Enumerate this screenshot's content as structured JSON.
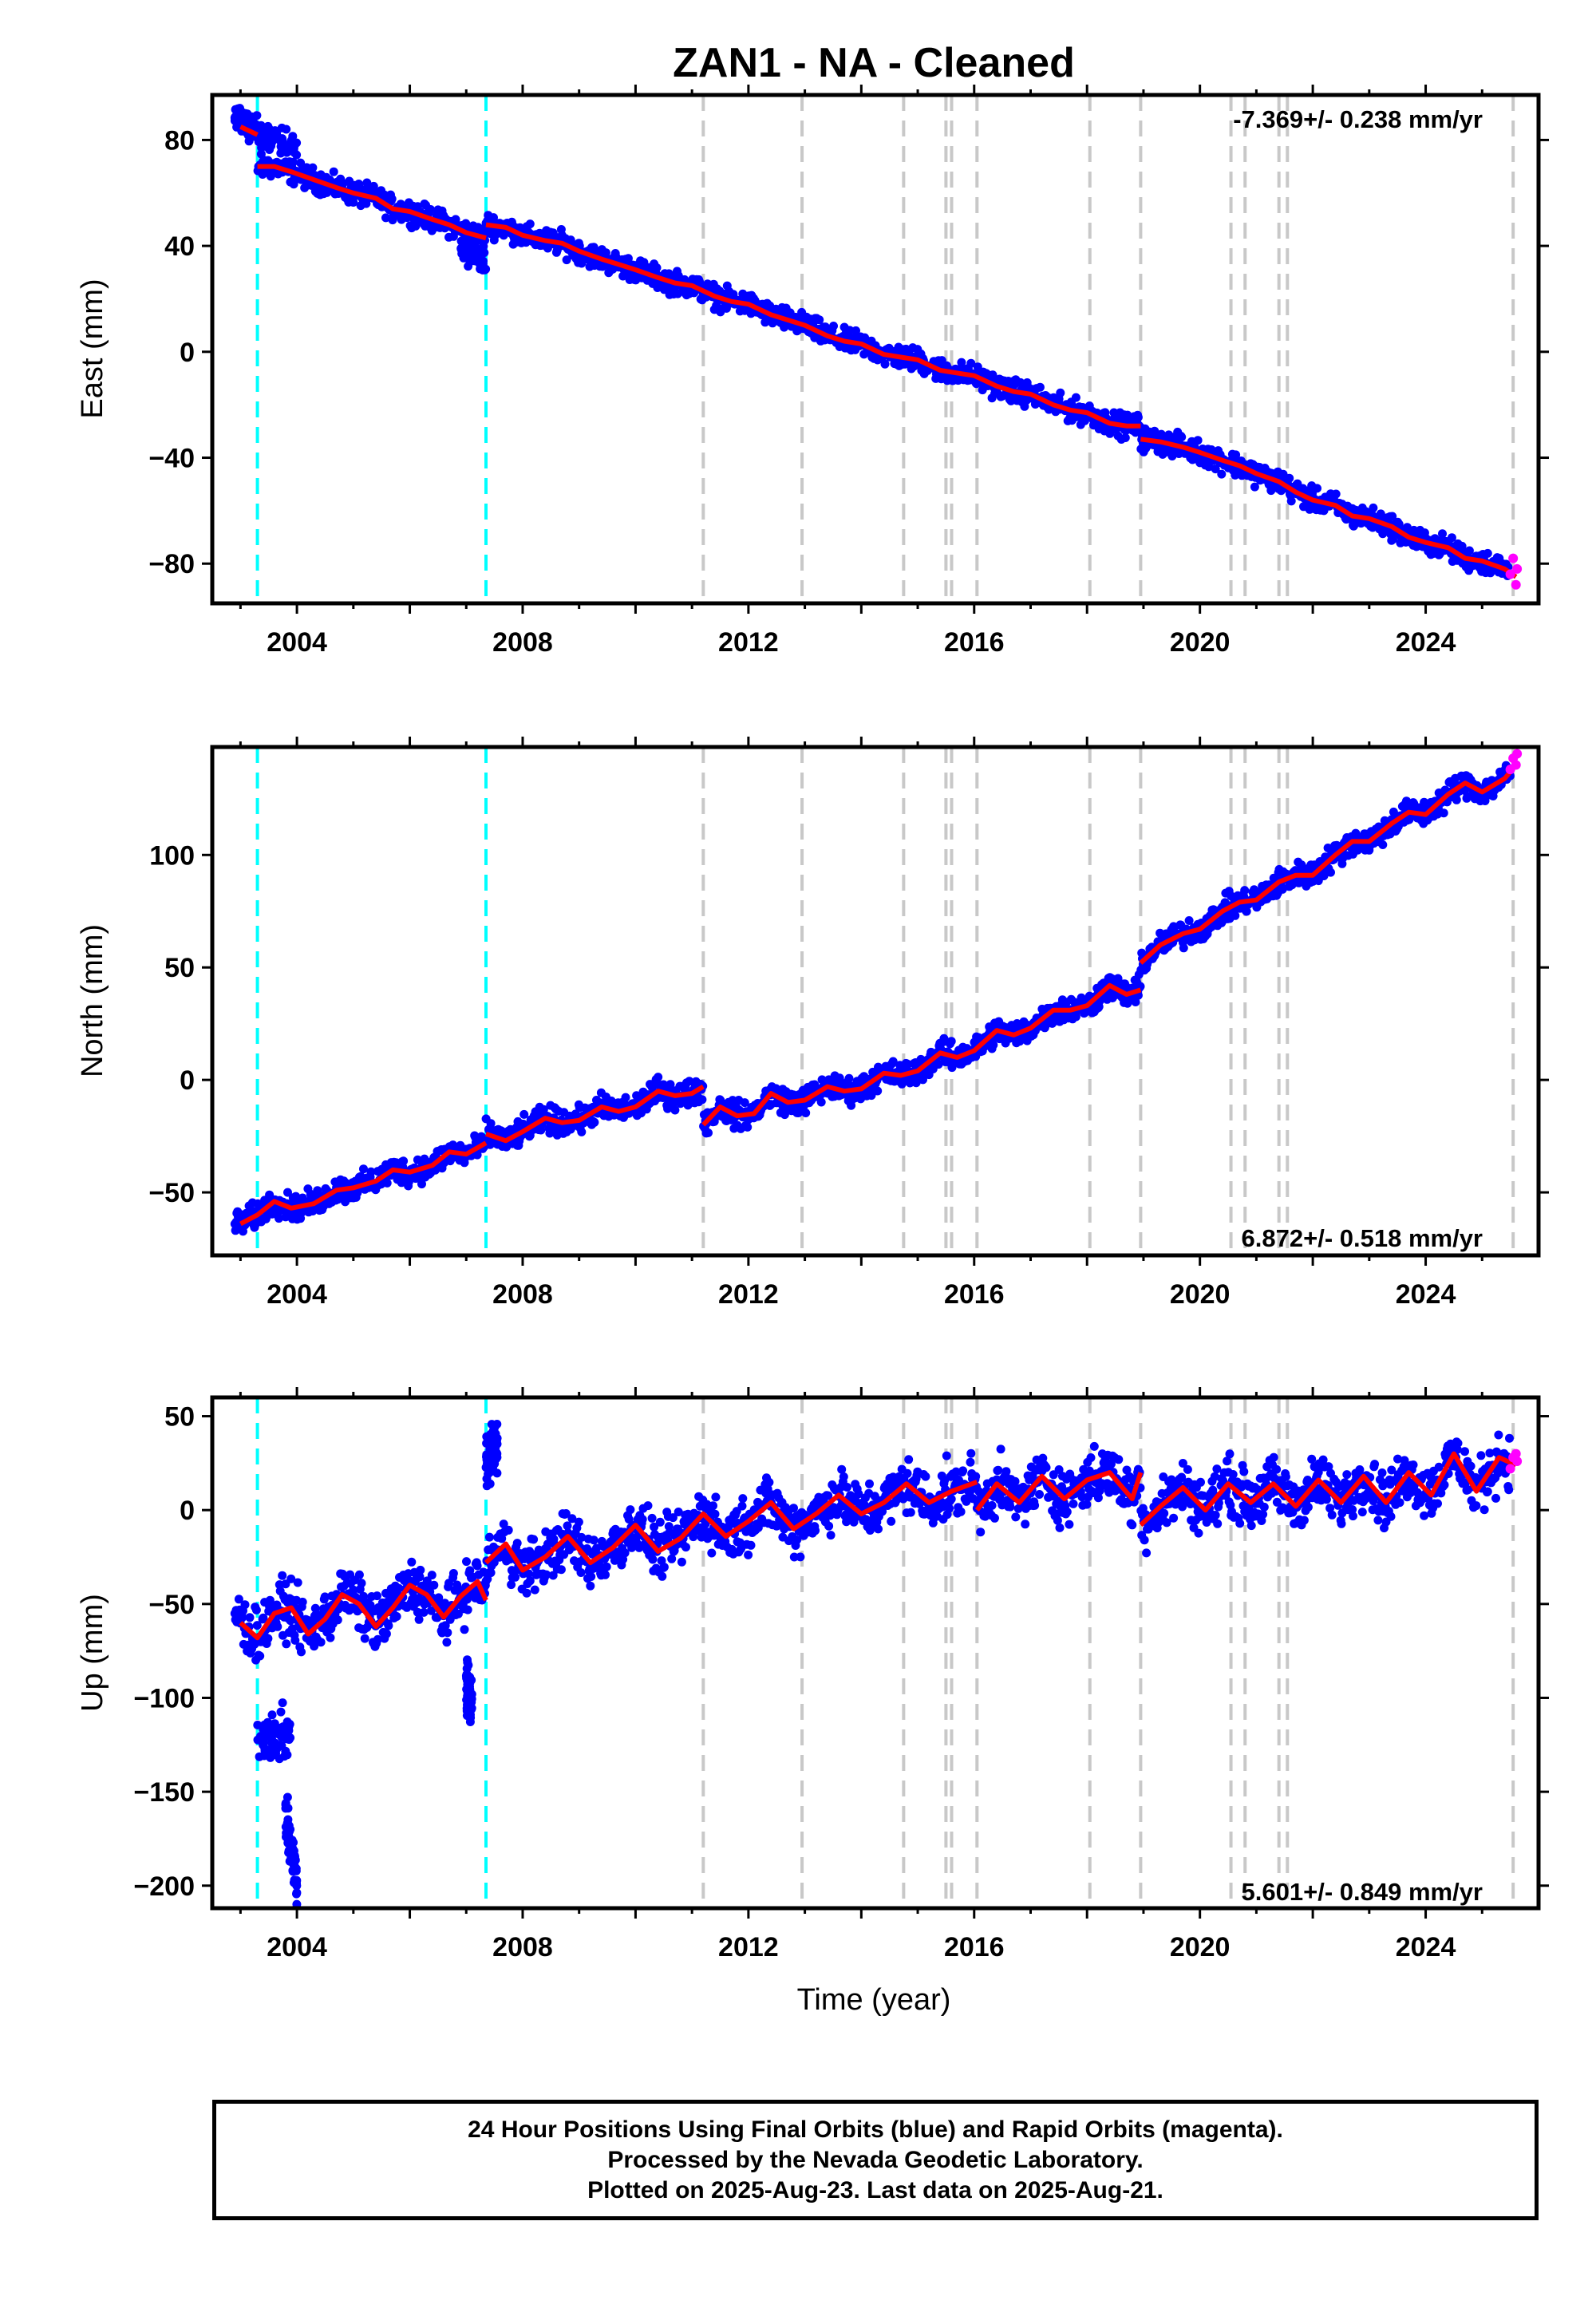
{
  "title": "ZAN1  - NA - Cleaned",
  "colors": {
    "final_orbits": "#0000ff",
    "rapid_orbits": "#ff00ff",
    "model": "#ff0000",
    "equipment_change": "#00ffff",
    "event": "#c8c8c8"
  },
  "xlabel": "Time (year)",
  "caption": [
    "24 Hour Positions Using Final Orbits (blue) and Rapid Orbits (magenta).",
    "Processed by the Nevada Geodetic Laboratory.",
    "Plotted on 2025-Aug-23. Last data on 2025-Aug-21."
  ],
  "chart_data": [
    {
      "type": "scatter",
      "component": "East",
      "ylabel": "East (mm)",
      "rate_label": "-7.369+/- 0.238 mm/yr",
      "xlim": [
        2002.5,
        2026.0
      ],
      "ylim": [
        -95,
        97
      ],
      "xticks": [
        2004,
        2008,
        2012,
        2016,
        2020,
        2024
      ],
      "yticks": [
        -80,
        -40,
        0,
        40,
        80
      ],
      "cyan_lines": [
        2003.3,
        2007.35
      ],
      "gray_lines": [
        2011.2,
        2012.95,
        2014.75,
        2015.5,
        2015.6,
        2016.05,
        2018.05,
        2018.95,
        2020.55,
        2020.8,
        2021.4,
        2021.55,
        2025.55
      ],
      "model_segments": [
        {
          "x": [
            2003.0,
            2003.3
          ],
          "y": [
            85,
            82
          ]
        },
        {
          "x": [
            2003.3,
            2003.6,
            2003.9,
            2004.3,
            2004.7,
            2005.0,
            2005.4,
            2005.7,
            2006.0,
            2006.4,
            2006.7,
            2007.0,
            2007.35
          ],
          "y": [
            70,
            70,
            68,
            65,
            62,
            60,
            58,
            54,
            53,
            50,
            48,
            45,
            43
          ]
        },
        {
          "x": [
            2007.35,
            2007.7,
            2008.0,
            2008.4,
            2008.7,
            2009.0,
            2009.4,
            2009.7,
            2010.0,
            2010.4,
            2010.7,
            2011.0,
            2011.4,
            2011.7,
            2012.0,
            2012.4,
            2012.7,
            2013.0,
            2013.4,
            2013.7,
            2014.0,
            2014.4,
            2014.7,
            2015.0,
            2015.4,
            2015.7,
            2016.0,
            2016.4,
            2016.7,
            2017.0,
            2017.4,
            2017.7,
            2018.0,
            2018.4,
            2018.7,
            2018.95
          ],
          "y": [
            48,
            47,
            44,
            42,
            41,
            38,
            35,
            33,
            31,
            28,
            26,
            25,
            21,
            19,
            18,
            14,
            12,
            10,
            6,
            4,
            3,
            -1,
            -2,
            -3,
            -7,
            -8,
            -9,
            -13,
            -15,
            -16,
            -20,
            -22,
            -23,
            -27,
            -28,
            -28
          ]
        },
        {
          "x": [
            2018.95,
            2019.3,
            2019.7,
            2020.0,
            2020.4,
            2020.7,
            2021.0,
            2021.4,
            2021.7,
            2022.0,
            2022.4,
            2022.7,
            2023.0,
            2023.4,
            2023.7,
            2024.0,
            2024.4,
            2024.7,
            2025.0,
            2025.4,
            2025.6
          ],
          "y": [
            -33,
            -34,
            -36,
            -38,
            -41,
            -43,
            -46,
            -49,
            -53,
            -56,
            -58,
            -62,
            -63,
            -66,
            -70,
            -72,
            -74,
            -78,
            -79,
            -82,
            -85
          ]
        }
      ],
      "points_trend": {
        "x0": 2002.9,
        "x1": 2025.5,
        "y0": 88,
        "y1": -86,
        "scatter": 3.0
      },
      "points_segments": [
        {
          "x": [
            2002.9,
            2003.3
          ],
          "y": [
            90,
            84
          ]
        },
        {
          "x": [
            2003.3,
            2004.0
          ],
          "y": [
            82,
            78
          ]
        },
        {
          "x": [
            2006.9,
            2007.35
          ],
          "y": [
            38,
            34
          ]
        }
      ],
      "rapid_points": {
        "x": [
          2025.5,
          2025.55,
          2025.6,
          2025.62
        ],
        "y": [
          -84,
          -78,
          -88,
          -82
        ]
      }
    },
    {
      "type": "scatter",
      "component": "North",
      "ylabel": "North (mm)",
      "rate_label": "6.872+/- 0.518 mm/yr",
      "xlim": [
        2002.5,
        2026.0
      ],
      "ylim": [
        -78,
        148
      ],
      "xticks": [
        2004,
        2008,
        2012,
        2016,
        2020,
        2024
      ],
      "yticks": [
        -50,
        0,
        50,
        100
      ],
      "cyan_lines": [
        2003.3,
        2007.35
      ],
      "gray_lines": [
        2011.2,
        2012.95,
        2014.75,
        2015.5,
        2015.6,
        2016.05,
        2018.05,
        2018.95,
        2020.55,
        2020.8,
        2021.4,
        2021.55,
        2025.55
      ],
      "model_segments": [
        {
          "x": [
            2003.0,
            2003.3,
            2003.6,
            2003.9,
            2004.3,
            2004.7,
            2005.0,
            2005.4,
            2005.7,
            2006.0,
            2006.4,
            2006.7,
            2007.0,
            2007.35
          ],
          "y": [
            -64,
            -60,
            -54,
            -57,
            -55,
            -49,
            -48,
            -45,
            -40,
            -41,
            -38,
            -32,
            -33,
            -28
          ]
        },
        {
          "x": [
            2007.35,
            2007.7,
            2008.0,
            2008.4,
            2008.7,
            2009.0,
            2009.4,
            2009.7,
            2010.0,
            2010.4,
            2010.7,
            2011.0,
            2011.2
          ],
          "y": [
            -24,
            -27,
            -23,
            -17,
            -19,
            -18,
            -12,
            -14,
            -12,
            -5,
            -7,
            -6,
            -3
          ]
        },
        {
          "x": [
            2011.2,
            2011.5,
            2011.8,
            2012.1,
            2012.4,
            2012.7,
            2013.0,
            2013.4,
            2013.7,
            2014.0,
            2014.4,
            2014.7,
            2015.0,
            2015.4,
            2015.7,
            2016.0,
            2016.4,
            2016.7,
            2017.0,
            2017.4,
            2017.7,
            2018.0,
            2018.4,
            2018.7,
            2018.95
          ],
          "y": [
            -20,
            -12,
            -16,
            -15,
            -6,
            -10,
            -9,
            -3,
            -5,
            -4,
            3,
            2,
            4,
            12,
            10,
            13,
            22,
            20,
            23,
            31,
            31,
            33,
            42,
            38,
            40
          ]
        },
        {
          "x": [
            2018.95,
            2019.3,
            2019.7,
            2020.0,
            2020.4,
            2020.7,
            2021.0,
            2021.4,
            2021.7,
            2022.0,
            2022.4,
            2022.7,
            2023.0,
            2023.4,
            2023.7,
            2024.0,
            2024.4,
            2024.7,
            2025.0,
            2025.4,
            2025.6
          ],
          "y": [
            52,
            60,
            65,
            67,
            75,
            79,
            80,
            88,
            91,
            91,
            100,
            106,
            106,
            114,
            119,
            118,
            127,
            132,
            128,
            134,
            140
          ]
        }
      ],
      "points_trend": {
        "x0": 2002.9,
        "x1": 2025.5,
        "y0": -64,
        "y1": 138,
        "scatter": 4.0
      },
      "points_segments": [],
      "rapid_points": {
        "x": [
          2025.5,
          2025.55,
          2025.6,
          2025.62
        ],
        "y": [
          138,
          143,
          140,
          145
        ]
      }
    },
    {
      "type": "scatter",
      "component": "Up",
      "ylabel": "Up (mm)",
      "rate_label": "5.601+/- 0.849 mm/yr",
      "xlim": [
        2002.5,
        2026.0
      ],
      "ylim": [
        -212,
        60
      ],
      "xticks": [
        2004,
        2008,
        2012,
        2016,
        2020,
        2024
      ],
      "yticks": [
        -200,
        -150,
        -100,
        -50,
        0,
        50
      ],
      "cyan_lines": [
        2003.3,
        2007.35
      ],
      "gray_lines": [
        2011.2,
        2012.95,
        2014.75,
        2015.5,
        2015.6,
        2016.05,
        2018.05,
        2018.95,
        2020.55,
        2020.8,
        2021.4,
        2021.55,
        2025.55
      ],
      "model_segments": [
        {
          "x": [
            2003.0,
            2003.3,
            2003.6,
            2003.9,
            2004.2,
            2004.5,
            2004.8,
            2005.1,
            2005.4,
            2005.7,
            2006.0,
            2006.3,
            2006.6,
            2006.9,
            2007.2,
            2007.35
          ],
          "y": [
            -60,
            -68,
            -55,
            -52,
            -66,
            -58,
            -45,
            -50,
            -62,
            -52,
            -40,
            -45,
            -57,
            -46,
            -38,
            -48
          ]
        },
        {
          "x": [
            2007.35,
            2007.7,
            2008.0,
            2008.4,
            2008.8,
            2009.2,
            2009.6,
            2010.0,
            2010.4,
            2010.8,
            2011.2,
            2011.6,
            2012.0,
            2012.4,
            2012.8,
            2013.2,
            2013.6,
            2014.0,
            2014.4,
            2014.8,
            2015.2,
            2015.6,
            2016.05
          ],
          "y": [
            -28,
            -18,
            -32,
            -25,
            -14,
            -28,
            -20,
            -8,
            -22,
            -15,
            -2,
            -14,
            -6,
            4,
            -10,
            -2,
            8,
            -2,
            4,
            14,
            4,
            10,
            15
          ]
        },
        {
          "x": [
            2016.05,
            2016.4,
            2016.8,
            2017.2,
            2017.6,
            2018.0,
            2018.4,
            2018.8,
            2018.95
          ],
          "y": [
            0,
            14,
            4,
            18,
            6,
            16,
            20,
            6,
            20
          ]
        },
        {
          "x": [
            2018.95,
            2019.3,
            2019.7,
            2020.1,
            2020.5,
            2020.9,
            2021.3,
            2021.7,
            2022.1,
            2022.5,
            2022.9,
            2023.3,
            2023.7,
            2024.1,
            2024.5,
            2024.9,
            2025.3,
            2025.6
          ],
          "y": [
            -8,
            2,
            12,
            0,
            14,
            4,
            14,
            2,
            16,
            4,
            18,
            4,
            20,
            8,
            30,
            10,
            28,
            24
          ]
        }
      ],
      "points_trend": {
        "x0": 2002.9,
        "x1": 2025.5,
        "y0": -55,
        "y1": 20,
        "scatter": 10.0
      },
      "points_segments": [
        {
          "x": [
            2003.3,
            2003.9
          ],
          "y": [
            -125,
            -120
          ]
        },
        {
          "x": [
            2003.8,
            2004.0
          ],
          "y": [
            -165,
            -200
          ]
        },
        {
          "x": [
            2007.35,
            2007.55
          ],
          "y": [
            28,
            32
          ]
        },
        {
          "x": [
            2007.0,
            2007.1
          ],
          "y": [
            -95,
            -105
          ]
        }
      ],
      "rapid_points": {
        "x": [
          2025.5,
          2025.55,
          2025.6,
          2025.62
        ],
        "y": [
          22,
          28,
          30,
          26
        ]
      }
    }
  ]
}
